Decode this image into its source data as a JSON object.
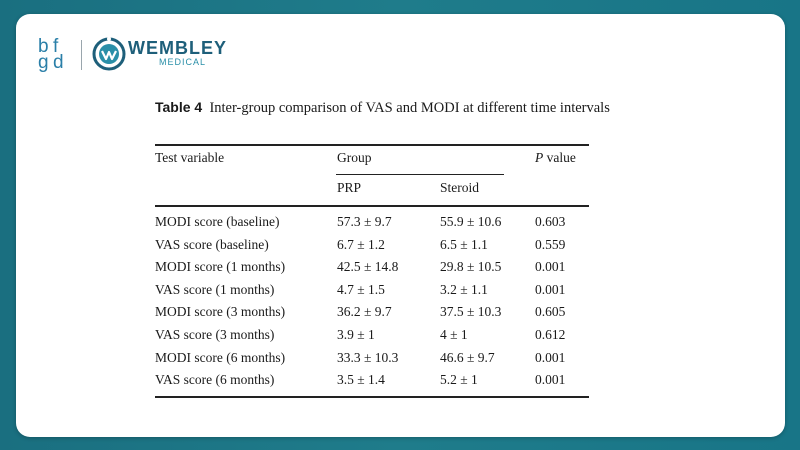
{
  "logo": {
    "bfgd_letters": [
      "b",
      "f",
      "g",
      "d"
    ],
    "brand_name": "WEMBLEY",
    "brand_sub": "MEDICAL"
  },
  "table": {
    "caption_label": "Table 4",
    "caption_text": "Inter-group comparison of VAS and MODI at different time intervals",
    "header": {
      "test_variable": "Test variable",
      "group": "Group",
      "p_italic": "P",
      "p_rest": " value",
      "prp": "PRP",
      "steroid": "Steroid"
    },
    "rows": [
      {
        "variable": "MODI score (baseline)",
        "prp": "57.3 ± 9.7",
        "steroid": "55.9 ± 10.6",
        "p": "0.603"
      },
      {
        "variable": "VAS score (baseline)",
        "prp": "6.7 ± 1.2",
        "steroid": "6.5 ± 1.1",
        "p": "0.559"
      },
      {
        "variable": "MODI score (1 months)",
        "prp": "42.5 ± 14.8",
        "steroid": "29.8 ± 10.5",
        "p": "0.001"
      },
      {
        "variable": "VAS score (1 months)",
        "prp": "4.7 ± 1.5",
        "steroid": "3.2 ± 1.1",
        "p": "0.001"
      },
      {
        "variable": "MODI score (3 months)",
        "prp": "36.2 ± 9.7",
        "steroid": "37.5 ± 10.3",
        "p": "0.605"
      },
      {
        "variable": "VAS score (3 months)",
        "prp": "3.9 ± 1",
        "steroid": "4 ± 1",
        "p": "0.612"
      },
      {
        "variable": "MODI score (6 months)",
        "prp": "33.3 ± 10.3",
        "steroid": "46.6 ± 9.7",
        "p": "0.001"
      },
      {
        "variable": "VAS score (6 months)",
        "prp": "3.5 ± 1.4",
        "steroid": "5.2 ± 1",
        "p": "0.001"
      }
    ]
  },
  "colors": {
    "background_teal": "#1f7c8b",
    "brand_blue": "#1e5f7a",
    "brand_cyan": "#2a8fa8"
  }
}
